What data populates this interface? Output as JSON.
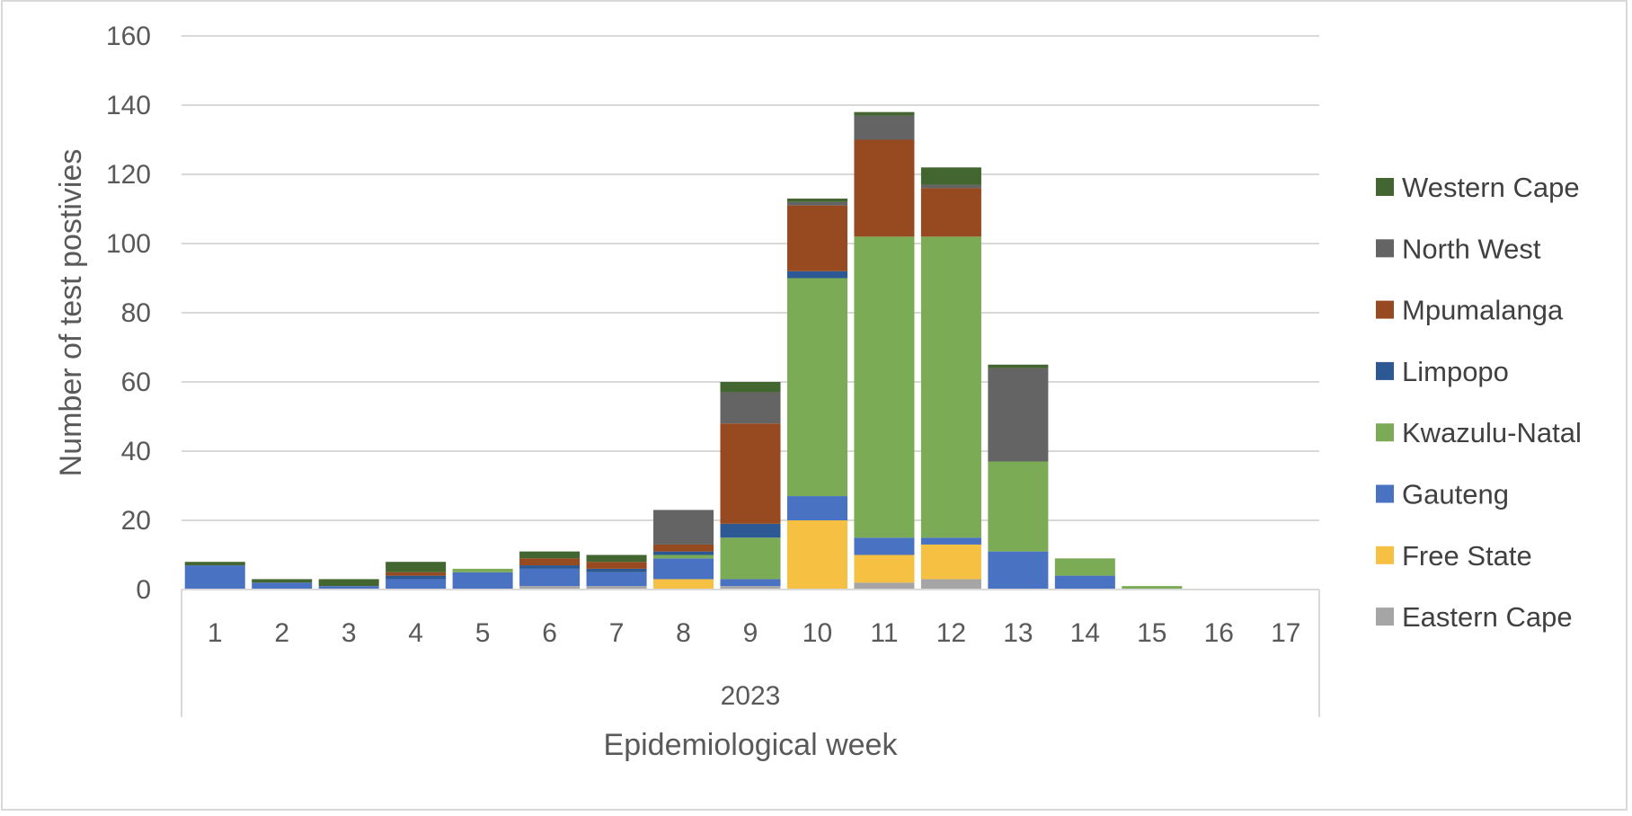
{
  "chart_data": {
    "type": "bar",
    "stacked": true,
    "categories": [
      "1",
      "2",
      "3",
      "4",
      "5",
      "6",
      "7",
      "8",
      "9",
      "10",
      "11",
      "12",
      "13",
      "14",
      "15",
      "16",
      "17"
    ],
    "group_label": "2023",
    "xlabel": "Epidemiological week",
    "ylabel": "Number of test postivies",
    "ylim": [
      0,
      160
    ],
    "yticks": [
      0,
      20,
      40,
      60,
      80,
      100,
      120,
      140,
      160
    ],
    "grid": true,
    "legend_position": "right",
    "series": [
      {
        "name": "Eastern Cape",
        "color": "#a5a5a5",
        "values": [
          0,
          0,
          0,
          0,
          0,
          1,
          1,
          0,
          1,
          0,
          2,
          3,
          0,
          0,
          0,
          0,
          0
        ]
      },
      {
        "name": "Free State",
        "color": "#f6c143",
        "values": [
          0,
          0,
          0,
          0,
          0,
          0,
          0,
          3,
          0,
          20,
          8,
          10,
          0,
          0,
          0,
          0,
          0
        ]
      },
      {
        "name": "Gauteng",
        "color": "#4a72c3",
        "values": [
          7,
          2,
          1,
          3,
          5,
          5,
          4,
          6,
          2,
          7,
          5,
          2,
          11,
          4,
          0,
          0,
          0
        ]
      },
      {
        "name": "Kwazulu-Natal",
        "color": "#7bab55",
        "values": [
          0,
          0,
          0,
          0,
          1,
          0,
          0,
          1,
          12,
          63,
          87,
          87,
          26,
          5,
          1,
          0,
          0
        ]
      },
      {
        "name": "Limpopo",
        "color": "#2c5893",
        "values": [
          0,
          0,
          0,
          1,
          0,
          1,
          1,
          1,
          4,
          2,
          0,
          0,
          0,
          0,
          0,
          0,
          0
        ]
      },
      {
        "name": "Mpumalanga",
        "color": "#974a20",
        "values": [
          0,
          0,
          0,
          1,
          0,
          2,
          2,
          2,
          29,
          19,
          28,
          14,
          0,
          0,
          0,
          0,
          0
        ]
      },
      {
        "name": "North West",
        "color": "#646464",
        "values": [
          0,
          0,
          0,
          0,
          0,
          0,
          0,
          10,
          9,
          1,
          7,
          1,
          27,
          0,
          0,
          0,
          0
        ]
      },
      {
        "name": "Western Cape",
        "color": "#436530",
        "values": [
          1,
          1,
          2,
          3,
          0,
          2,
          2,
          0,
          3,
          1,
          1,
          5,
          1,
          0,
          0,
          0,
          0
        ]
      }
    ]
  }
}
